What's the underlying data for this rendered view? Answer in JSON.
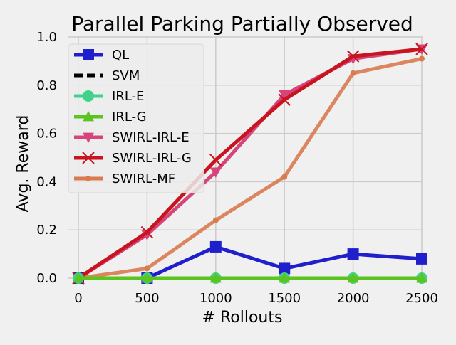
{
  "chart_data": {
    "type": "line",
    "title": "Parallel Parking Partially Observed",
    "xlabel": "# Rollouts",
    "ylabel": "Avg. Reward",
    "x": [
      0,
      500,
      1000,
      1500,
      2000,
      2500
    ],
    "xlim": [
      0,
      2500
    ],
    "ylim": [
      0,
      1.0
    ],
    "xticks": [
      "0",
      "500",
      "1000",
      "1500",
      "2000",
      "2500"
    ],
    "yticks": [
      "0.0",
      "0.2",
      "0.4",
      "0.6",
      "0.8",
      "1.0"
    ],
    "grid": true,
    "legend_position": "top-left",
    "series": [
      {
        "name": "QL",
        "color": "#1f1fcc",
        "marker": "square",
        "values": [
          0.0,
          0.0,
          0.13,
          0.04,
          0.1,
          0.08
        ]
      },
      {
        "name": "SVM",
        "color": "#000000",
        "marker": "none",
        "dashed": true,
        "values": [
          0.0,
          0.0,
          0.0,
          0.0,
          0.0,
          0.0
        ]
      },
      {
        "name": "IRL-E",
        "color": "#3fd28a",
        "marker": "circle",
        "values": [
          0.0,
          0.0,
          0.0,
          0.0,
          0.0,
          0.0
        ]
      },
      {
        "name": "IRL-G",
        "color": "#5bc41e",
        "marker": "triangle-up",
        "values": [
          0.0,
          0.0,
          0.0,
          0.0,
          0.0,
          0.0
        ]
      },
      {
        "name": "SWIRL-IRL-E",
        "color": "#d6457a",
        "marker": "triangle-down",
        "values": [
          0.0,
          0.18,
          0.44,
          0.76,
          0.91,
          0.95
        ]
      },
      {
        "name": "SWIRL-IRL-G",
        "color": "#c8141e",
        "marker": "x",
        "values": [
          0.0,
          0.19,
          0.49,
          0.74,
          0.92,
          0.95
        ]
      },
      {
        "name": "SWIRL-MF",
        "color": "#d97a50",
        "marker": "dot",
        "values": [
          0.0,
          0.04,
          0.24,
          0.42,
          0.85,
          0.91
        ]
      }
    ]
  }
}
